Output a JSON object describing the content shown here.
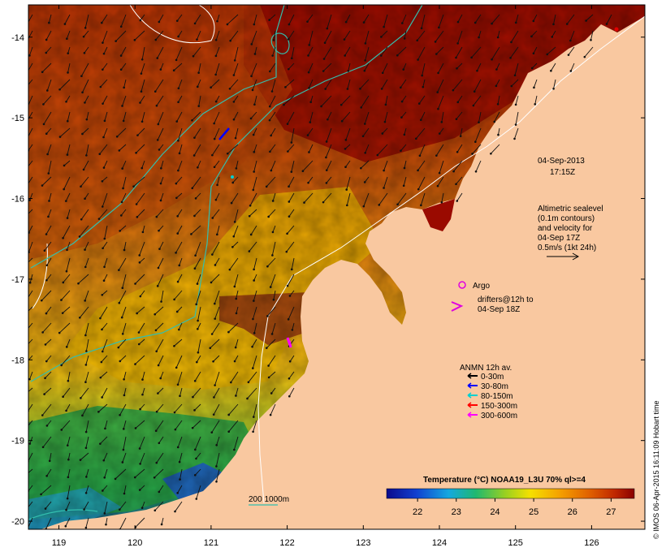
{
  "map": {
    "y_ticks": [
      {
        "value": -14,
        "label": "-14"
      },
      {
        "value": -15,
        "label": "-15"
      },
      {
        "value": -16,
        "label": "-16"
      },
      {
        "value": -17,
        "label": "-17"
      },
      {
        "value": -18,
        "label": "-18"
      },
      {
        "value": -19,
        "label": "-19"
      },
      {
        "value": -20,
        "label": "-20"
      }
    ],
    "x_ticks": [
      {
        "value": 119,
        "label": "119"
      },
      {
        "value": 120,
        "label": "120"
      },
      {
        "value": 121,
        "label": "121"
      },
      {
        "value": 122,
        "label": "122"
      },
      {
        "value": 123,
        "label": "123"
      },
      {
        "value": 124,
        "label": "124"
      },
      {
        "value": 125,
        "label": "125"
      },
      {
        "value": 126,
        "label": "126"
      }
    ],
    "lon_range": [
      118.6,
      126.7
    ],
    "lat_range": [
      -20.1,
      -13.6
    ],
    "colors": {
      "land": "#f9c8a0",
      "hot": "#9a0a00",
      "warm": "#e07000",
      "mid": "#f2b700",
      "cool": "#22a83a",
      "cold": "#1f60c8",
      "contour_shallow": "#ffffff",
      "contour_deep": "#33bfae",
      "argo": "#e000e0"
    }
  },
  "annotations": {
    "date_line1": "04-Sep-2013",
    "date_line2": "17:15Z",
    "altimetric_line1": "Altimetric sealevel",
    "altimetric_line2": "(0.1m contours)",
    "altimetric_line3": "and velocity for",
    "altimetric_line4": "04-Sep 17Z",
    "altimetric_line5": "0.5m/s (1kt 24h)",
    "argo_label": "Argo",
    "drifters_line1": "drifters@12h to",
    "drifters_line2": "04-Sep 18Z",
    "anmn_title": "ANMN 12h av.",
    "depth_legend": [
      {
        "label": "0-30m",
        "color": "#000000"
      },
      {
        "label": "30-80m",
        "color": "#0000ff"
      },
      {
        "label": "80-150m",
        "color": "#00d0d0"
      },
      {
        "label": "150-300m",
        "color": "#ff0000"
      },
      {
        "label": "300-600m",
        "color": "#ff00ff"
      }
    ],
    "contour_legend": "200  1000m",
    "credit": "© IMOS 06-Apr-2015 16:11:09 Hobart time"
  },
  "colorbar": {
    "title": "Temperature (°C) NOAA19_L3U 70% ql>=4",
    "range": [
      21.2,
      27.6
    ],
    "ticks": [
      {
        "value": 22,
        "label": "22"
      },
      {
        "value": 23,
        "label": "23"
      },
      {
        "value": 24,
        "label": "24"
      },
      {
        "value": 25,
        "label": "25"
      },
      {
        "value": 26,
        "label": "26"
      },
      {
        "value": 27,
        "label": "27"
      }
    ]
  }
}
